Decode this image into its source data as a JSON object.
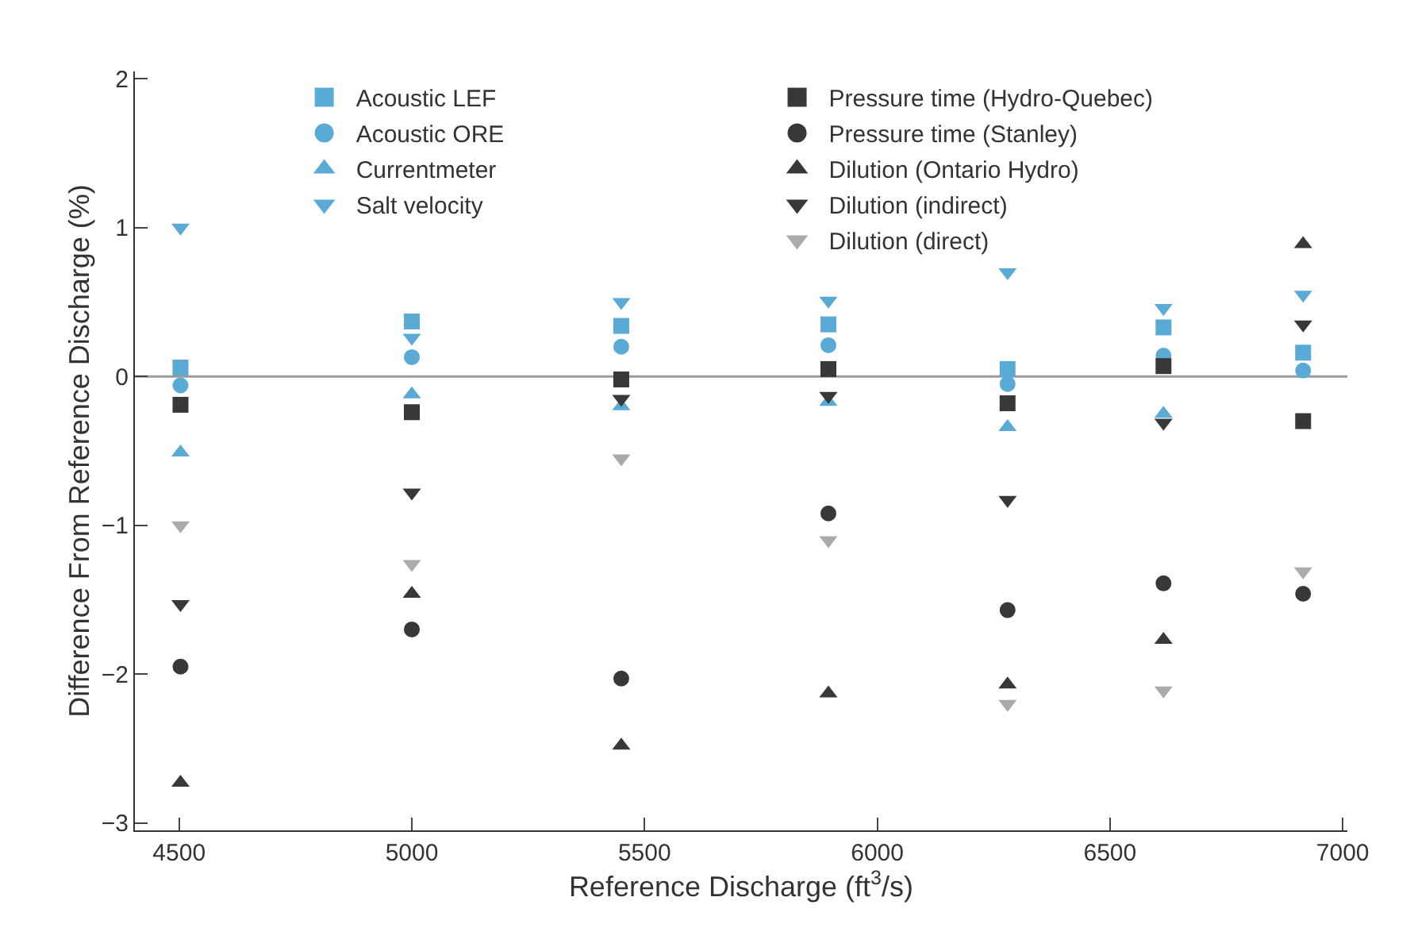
{
  "chart_data": {
    "type": "scatter",
    "xlabel": "Reference Discharge (ft$^{3}$/s)",
    "ylabel": "Difference From Reference Discharge (%)",
    "x": [
      4503,
      5000,
      5450,
      5895,
      6280,
      6615,
      6915
    ],
    "xlim": [
      4405,
      7010
    ],
    "xticks": [
      4500,
      5000,
      5500,
      6000,
      6500,
      7000
    ],
    "ylim": [
      -3.05,
      2.05
    ],
    "yticks": [
      -3,
      -2,
      -1,
      0,
      1,
      2
    ],
    "grid": false,
    "legend": "top",
    "ref_lines": [
      {
        "axis": "y",
        "value": 0,
        "color": "#9a9a9a"
      }
    ],
    "series": [
      {
        "name": "Acoustic LEF",
        "color": "#5aaad6",
        "marker": "square",
        "values": [
          0.06,
          0.37,
          0.34,
          0.35,
          0.05,
          0.33,
          0.16
        ]
      },
      {
        "name": "Acoustic ORE",
        "color": "#5aaad6",
        "marker": "circle",
        "values": [
          -0.06,
          0.13,
          0.2,
          0.21,
          -0.05,
          0.14,
          0.04
        ]
      },
      {
        "name": "Currentmeter",
        "color": "#5aaad6",
        "marker": "triangle",
        "values": [
          -0.51,
          -0.12,
          -0.2,
          -0.17,
          -0.34,
          -0.25,
          null
        ]
      },
      {
        "name": "Salt velocity",
        "color": "#5aaad6",
        "marker": "triangle-down",
        "values": [
          1.0,
          0.26,
          0.5,
          0.51,
          0.7,
          0.46,
          0.55
        ]
      },
      {
        "name": "Pressure time (Hydro-Quebec)",
        "color": "#383838",
        "marker": "square",
        "values": [
          -0.19,
          -0.24,
          -0.02,
          0.05,
          -0.18,
          0.07,
          -0.3
        ]
      },
      {
        "name": "Pressure time (Stanley)",
        "color": "#383838",
        "marker": "circle",
        "values": [
          -1.95,
          -1.7,
          -2.03,
          -0.92,
          -1.57,
          -1.39,
          -1.46
        ]
      },
      {
        "name": "Dilution (Ontario Hydro)",
        "color": "#383838",
        "marker": "triangle",
        "values": [
          -2.73,
          -1.46,
          -2.48,
          -2.13,
          -2.07,
          -1.77,
          0.89
        ]
      },
      {
        "name": "Dilution (indirect)",
        "color": "#383838",
        "marker": "triangle-down",
        "values": [
          -1.53,
          -0.78,
          -0.15,
          -0.13,
          -0.83,
          -0.31,
          0.35
        ]
      },
      {
        "name": "Dilution (direct)",
        "color": "#ababab",
        "marker": "triangle-down",
        "values": [
          -1.0,
          -1.26,
          -0.55,
          -1.1,
          -2.2,
          -2.11,
          -1.31
        ]
      }
    ]
  }
}
